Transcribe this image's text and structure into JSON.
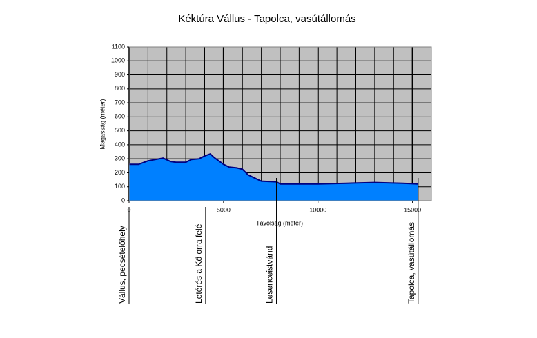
{
  "chart_data": {
    "type": "area",
    "title": "Kéktúra Vállus - Tapolca, vasútállomás",
    "x_label": "Távolság (méter)",
    "y_label": "Magasság (méter)",
    "x": [
      0,
      500,
      1000,
      1800,
      2200,
      2500,
      3000,
      3300,
      3700,
      4000,
      4300,
      4500,
      5000,
      5300,
      5700,
      6000,
      6300,
      7000,
      7800,
      8000,
      10000,
      11500,
      13000,
      14500,
      15300
    ],
    "series": [
      {
        "name": "Magasság",
        "color": "#0080ff",
        "line_color": "#000080",
        "values": [
          260,
          260,
          285,
          305,
          280,
          275,
          275,
          295,
          300,
          320,
          335,
          310,
          260,
          240,
          235,
          225,
          185,
          140,
          135,
          120,
          120,
          125,
          130,
          125,
          120
        ]
      }
    ],
    "xlim": [
      0,
      16000
    ],
    "xticks": [
      0,
      5000,
      10000,
      15000
    ],
    "x_minor_step": 1000,
    "ylim": [
      0,
      1100
    ],
    "yticks": [
      0,
      100,
      200,
      300,
      400,
      500,
      600,
      700,
      800,
      900,
      1000,
      1100
    ],
    "grid": true,
    "plot_background": "#c0c0c0",
    "annotations": [
      {
        "x": 0,
        "label": "Vállus, pecsételőhely"
      },
      {
        "x": 4050,
        "label": "Letérés a Kő orra felé"
      },
      {
        "x": 7800,
        "label": "Lesenceistvánd"
      },
      {
        "x": 15300,
        "label": "Tapolca, vasútállomás"
      }
    ]
  }
}
